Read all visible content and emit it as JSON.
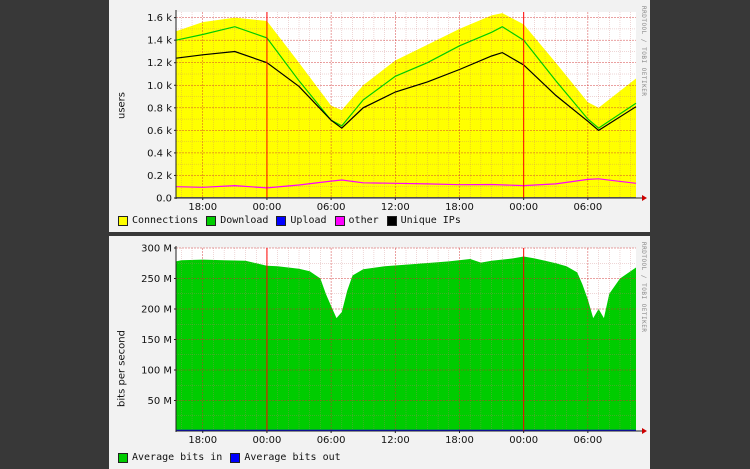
{
  "chart_data": [
    {
      "type": "area",
      "ylabel": "users",
      "ylim": [
        0,
        1650
      ],
      "y_ticks": [
        "0.0",
        "0.2 k",
        "0.4 k",
        "0.6 k",
        "0.8 k",
        "1.0 k",
        "1.2 k",
        "1.4 k",
        "1.6 k"
      ],
      "y_tick_values": [
        0,
        200,
        400,
        600,
        800,
        1000,
        1200,
        1400,
        1600
      ],
      "x_ticks": [
        "18:00",
        "00:00",
        "06:00",
        "12:00",
        "18:00",
        "00:00",
        "06:00"
      ],
      "x_tick_hours": [
        18,
        24,
        30,
        36,
        42,
        48,
        54
      ],
      "x_range_hours": [
        15.5,
        58.5
      ],
      "midnight_hours": [
        24,
        48
      ],
      "side_text": "RRDTOOL / TOBI OETIKER",
      "grid": true,
      "legend": [
        {
          "label": "Connections",
          "color": "#ffff00"
        },
        {
          "label": "Download",
          "color": "#00cc00"
        },
        {
          "label": "Upload",
          "color": "#0000ff"
        },
        {
          "label": "other",
          "color": "#ff00ff"
        },
        {
          "label": "Unique IPs",
          "color": "#000000"
        }
      ],
      "series": [
        {
          "name": "Connections",
          "color": "#ffff00",
          "style": "area",
          "x": [
            15.5,
            18,
            21,
            24,
            27,
            30,
            31,
            33,
            36,
            39,
            42,
            45,
            46,
            48,
            51,
            54,
            55,
            58.5
          ],
          "values": [
            1480,
            1560,
            1600,
            1570,
            1200,
            820,
            780,
            1000,
            1220,
            1360,
            1500,
            1620,
            1640,
            1540,
            1200,
            850,
            800,
            1060
          ]
        },
        {
          "name": "Download",
          "color": "#00cc00",
          "style": "line",
          "x": [
            15.5,
            18,
            21,
            24,
            27,
            30,
            31,
            33,
            36,
            39,
            42,
            45,
            46,
            48,
            51,
            54,
            55,
            58.5
          ],
          "values": [
            1400,
            1450,
            1520,
            1420,
            1040,
            690,
            640,
            870,
            1080,
            1200,
            1350,
            1470,
            1520,
            1400,
            1040,
            700,
            620,
            840
          ]
        },
        {
          "name": "Unique IPs",
          "color": "#000000",
          "style": "line",
          "x": [
            15.5,
            18,
            21,
            24,
            27,
            30,
            31,
            33,
            36,
            39,
            42,
            45,
            46,
            48,
            51,
            54,
            55,
            58.5
          ],
          "values": [
            1240,
            1270,
            1300,
            1200,
            990,
            690,
            620,
            800,
            940,
            1030,
            1140,
            1260,
            1290,
            1180,
            910,
            680,
            600,
            810
          ]
        },
        {
          "name": "other",
          "color": "#ff00ff",
          "style": "line",
          "x": [
            15.5,
            18,
            21,
            24,
            27,
            30,
            31,
            33,
            36,
            39,
            42,
            45,
            48,
            51,
            54,
            55,
            58.5
          ],
          "values": [
            100,
            95,
            110,
            90,
            115,
            150,
            160,
            135,
            130,
            125,
            118,
            120,
            110,
            125,
            165,
            170,
            130
          ]
        },
        {
          "name": "Upload",
          "color": "#0000ff",
          "style": "line",
          "x": [
            15.5,
            58.5
          ],
          "values": [
            2,
            2
          ]
        }
      ]
    },
    {
      "type": "area",
      "ylabel": "bits per second",
      "ylim": [
        0,
        300
      ],
      "y_ticks": [
        "50 M",
        "100 M",
        "150 M",
        "200 M",
        "250 M",
        "300 M"
      ],
      "y_tick_values": [
        50,
        100,
        150,
        200,
        250,
        300
      ],
      "x_ticks": [
        "18:00",
        "00:00",
        "06:00",
        "12:00",
        "18:00",
        "00:00",
        "06:00"
      ],
      "x_tick_hours": [
        18,
        24,
        30,
        36,
        42,
        48,
        54
      ],
      "x_range_hours": [
        15.5,
        58.5
      ],
      "midnight_hours": [
        24,
        48
      ],
      "side_text": "RRDTOOL / TOBI OETIKER",
      "grid": true,
      "legend": [
        {
          "label": "Average bits in",
          "color": "#00cc00"
        },
        {
          "label": "Average bits out",
          "color": "#0000ff"
        }
      ],
      "series": [
        {
          "name": "Average bits in",
          "color": "#00cc00",
          "style": "area",
          "x": [
            15.5,
            16,
            18,
            20,
            22,
            23,
            24,
            25,
            26,
            27,
            28,
            29,
            29.5,
            30,
            30.5,
            31,
            31.5,
            32,
            33,
            35,
            38,
            41,
            43,
            44,
            45,
            47,
            48,
            49,
            50,
            51,
            52,
            53,
            53.5,
            54,
            54.5,
            55,
            55.5,
            56,
            57,
            58.5
          ],
          "values": [
            278,
            280,
            281,
            280,
            279,
            275,
            271,
            270,
            268,
            266,
            262,
            250,
            225,
            205,
            185,
            195,
            230,
            255,
            265,
            270,
            274,
            278,
            282,
            276,
            279,
            283,
            286,
            283,
            279,
            275,
            270,
            260,
            240,
            215,
            185,
            200,
            185,
            225,
            250,
            268
          ]
        },
        {
          "name": "Average bits out",
          "color": "#0000ff",
          "style": "line",
          "x": [
            15.5,
            58.5
          ],
          "values": [
            1,
            1
          ]
        }
      ]
    }
  ]
}
